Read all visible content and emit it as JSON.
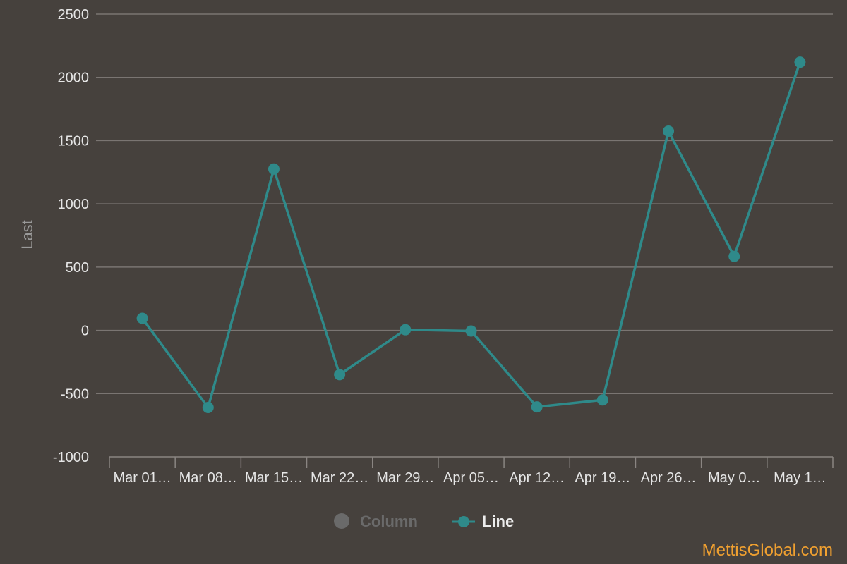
{
  "chart_data": {
    "type": "line",
    "ylabel": "Last",
    "ylim": [
      -1000,
      2500
    ],
    "yticks": [
      -1000,
      -500,
      0,
      500,
      1000,
      1500,
      2000,
      2500
    ],
    "grid": true,
    "categories": [
      "Mar 01…",
      "Mar 08…",
      "Mar 15…",
      "Mar 22…",
      "Mar 29…",
      "Apr 05…",
      "Apr 12…",
      "Apr 19…",
      "Apr 26…",
      "May 0…",
      "May 1…"
    ],
    "series": [
      {
        "name": "Line",
        "color": "#2f8a8a",
        "values": [
          95,
          -610,
          1275,
          -350,
          5,
          -5,
          -605,
          -550,
          1575,
          585,
          2120
        ]
      }
    ],
    "legend": {
      "placement": "bottom-center",
      "items": [
        {
          "label": "Column",
          "state": "hidden",
          "color": "#6a6a6a"
        },
        {
          "label": "Line",
          "state": "visible",
          "color": "#2f8a8a"
        }
      ]
    },
    "credit": "MettisGlobal.com"
  }
}
